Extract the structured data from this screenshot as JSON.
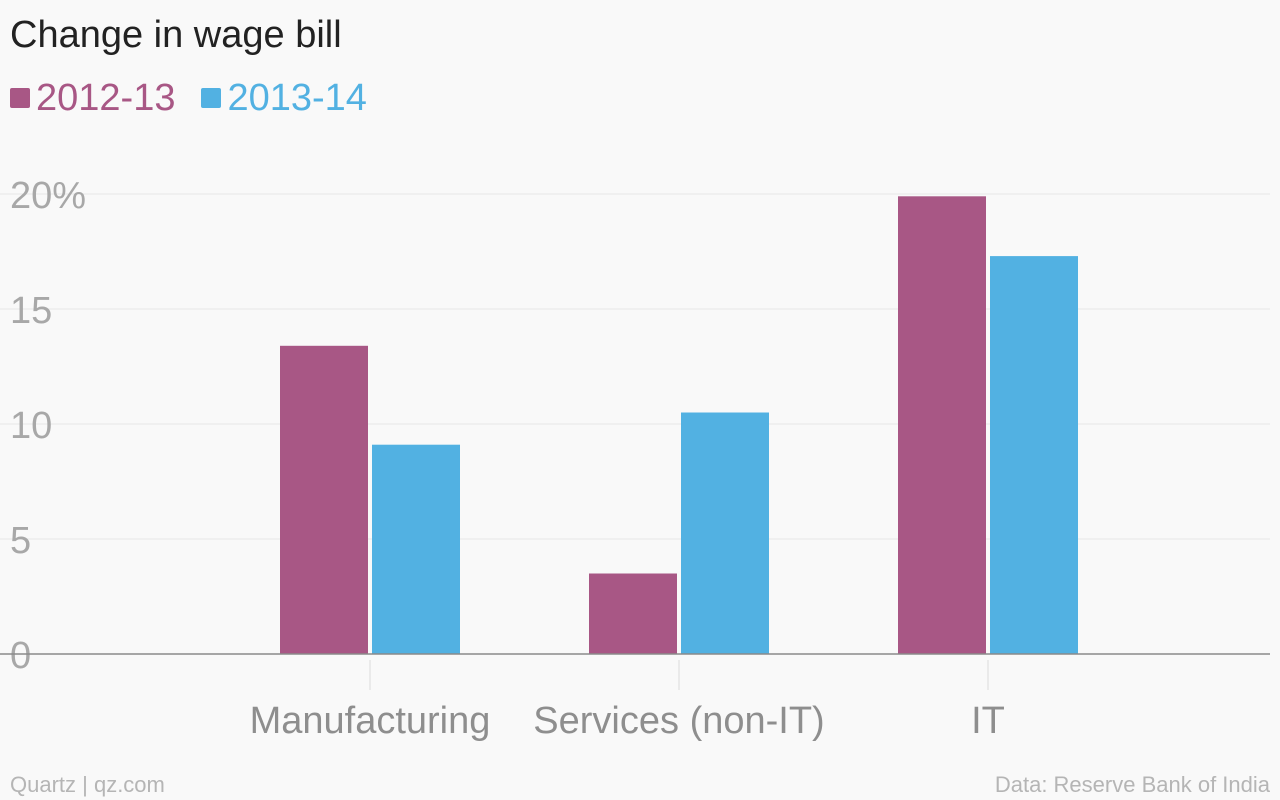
{
  "chart_data": {
    "type": "bar",
    "title": "Change in wage bill",
    "categories": [
      "Manufacturing",
      "Services (non-IT)",
      "IT"
    ],
    "series": [
      {
        "name": "2012-13",
        "color": "#a85785",
        "values": [
          13.4,
          3.5,
          19.9
        ]
      },
      {
        "name": "2013-14",
        "color": "#52b1e2",
        "values": [
          9.1,
          10.5,
          17.3
        ]
      }
    ],
    "yticks": [
      "0",
      "5",
      "10",
      "15",
      "20%"
    ],
    "ylim": [
      0,
      20
    ],
    "xlabel": "",
    "ylabel": "",
    "grid": true,
    "legend_position": "top-left"
  },
  "footer": {
    "source_left": "Quartz | qz.com",
    "source_right": "Data: Reserve Bank of India"
  }
}
